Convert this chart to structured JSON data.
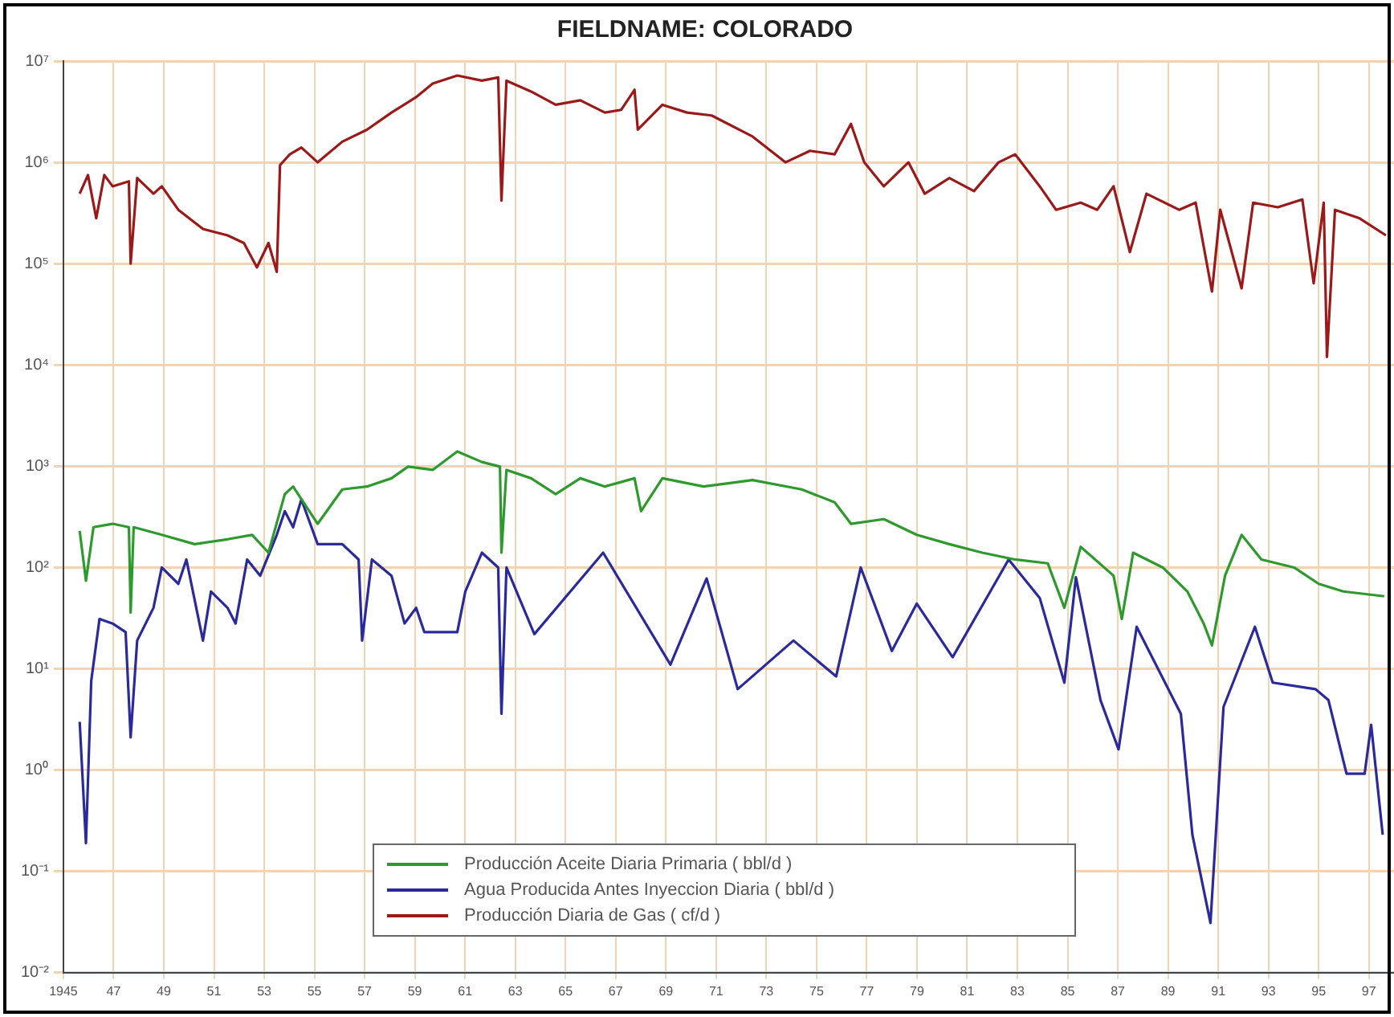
{
  "chart_data": {
    "type": "line",
    "title": "FIELDNAME: COLORADO",
    "log": "y",
    "grid": true,
    "legend": "bottom",
    "marker": "none",
    "line_style": "solid",
    "xlim": [
      1945,
      1998
    ],
    "xticks": [
      {
        "value": 1945,
        "label": "1945"
      },
      {
        "value": 1947,
        "label": "47"
      },
      {
        "value": 1949,
        "label": "49"
      },
      {
        "value": 1951,
        "label": "51"
      },
      {
        "value": 1953,
        "label": "53"
      },
      {
        "value": 1955,
        "label": "55"
      },
      {
        "value": 1957,
        "label": "57"
      },
      {
        "value": 1959,
        "label": "59"
      },
      {
        "value": 1961,
        "label": "61"
      },
      {
        "value": 1963,
        "label": "63"
      },
      {
        "value": 1965,
        "label": "65"
      },
      {
        "value": 1967,
        "label": "67"
      },
      {
        "value": 1969,
        "label": "69"
      },
      {
        "value": 1971,
        "label": "71"
      },
      {
        "value": 1973,
        "label": "73"
      },
      {
        "value": 1975,
        "label": "75"
      },
      {
        "value": 1977,
        "label": "77"
      },
      {
        "value": 1979,
        "label": "79"
      },
      {
        "value": 1981,
        "label": "81"
      },
      {
        "value": 1983,
        "label": "83"
      },
      {
        "value": 1985,
        "label": "85"
      },
      {
        "value": 1987,
        "label": "87"
      },
      {
        "value": 1989,
        "label": "89"
      },
      {
        "value": 1991,
        "label": "91"
      },
      {
        "value": 1993,
        "label": "93"
      },
      {
        "value": 1995,
        "label": "95"
      },
      {
        "value": 1997,
        "label": "97"
      }
    ],
    "ylim": [
      0.01,
      10000000
    ],
    "yticks": [
      {
        "value": 0.01,
        "label": "10⁻²"
      },
      {
        "value": 0.1,
        "label": "10⁻¹"
      },
      {
        "value": 1,
        "label": "10⁰"
      },
      {
        "value": 10,
        "label": "10¹"
      },
      {
        "value": 100,
        "label": "10²"
      },
      {
        "value": 1000,
        "label": "10³"
      },
      {
        "value": 10000,
        "label": "10⁴"
      },
      {
        "value": 100000,
        "label": "10⁵"
      },
      {
        "value": 1000000,
        "label": "10⁶"
      },
      {
        "value": 10000000,
        "label": "10⁷"
      }
    ],
    "series": [
      {
        "name": "Producción Aceite Diaria Primaria ( bbl/d )",
        "color": "#2e9a2e",
        "x": [
          1945.65,
          1945.9,
          1946.2,
          1946.96,
          1947.61,
          1947.68,
          1947.8,
          1948.92,
          1950.23,
          1951.54,
          1952.52,
          1953.17,
          1953.82,
          1954.15,
          1955.13,
          1956.11,
          1957.09,
          1958.07,
          1958.73,
          1959.71,
          1960.69,
          1961.67,
          1962.39,
          1962.45,
          1962.65,
          1963.63,
          1964.61,
          1965.59,
          1966.57,
          1967.75,
          1968.01,
          1968.86,
          1970.5,
          1972.45,
          1974.41,
          1975.72,
          1976.37,
          1977.68,
          1978.99,
          1980.29,
          1981.6,
          1982.9,
          1984.21,
          1984.87,
          1985.52,
          1986.83,
          1987.16,
          1987.61,
          1988.79,
          1989.77,
          1990.42,
          1990.75,
          1991.27,
          1991.93,
          1992.72,
          1994.02,
          1995.0,
          1995.98,
          1997.61
        ],
        "values": [
          230,
          74,
          250,
          270,
          250,
          36,
          250,
          210,
          170,
          190,
          210,
          140,
          530,
          630,
          270,
          590,
          630,
          760,
          990,
          920,
          1400,
          1100,
          990,
          140,
          920,
          760,
          530,
          760,
          630,
          760,
          360,
          760,
          630,
          730,
          590,
          440,
          270,
          300,
          210,
          170,
          140,
          120,
          110,
          40,
          160,
          83,
          31,
          140,
          100,
          58,
          28,
          17,
          83,
          210,
          120,
          100,
          69,
          58,
          52
        ]
      },
      {
        "name": "Agua Producida Antes Inyeccion Diaria ( bbl/d )",
        "color": "#2a2a9a",
        "x": [
          1945.65,
          1945.9,
          1946.11,
          1946.44,
          1946.96,
          1947.48,
          1947.68,
          1947.94,
          1948.59,
          1948.92,
          1949.58,
          1949.9,
          1950.56,
          1950.88,
          1951.54,
          1951.86,
          1952.32,
          1952.84,
          1953.5,
          1953.82,
          1954.15,
          1954.48,
          1955.13,
          1956.11,
          1956.76,
          1956.9,
          1957.29,
          1958.07,
          1958.59,
          1959.05,
          1959.38,
          1960.69,
          1961.01,
          1961.67,
          1962.32,
          1962.45,
          1962.65,
          1963.76,
          1966.5,
          1969.18,
          1970.62,
          1971.86,
          1974.08,
          1975.78,
          1976.76,
          1978.0,
          1978.99,
          1980.42,
          1982.65,
          1983.89,
          1984.87,
          1985.33,
          1986.31,
          1987.03,
          1987.75,
          1989.51,
          1989.97,
          1990.69,
          1991.21,
          1992.46,
          1993.17,
          1994.87,
          1995.39,
          1996.11,
          1996.83,
          1997.09,
          1997.55
        ],
        "values": [
          3.0,
          0.19,
          7.6,
          31,
          28,
          23,
          2.1,
          19,
          40,
          100,
          69,
          120,
          19,
          58,
          40,
          28,
          120,
          83,
          210,
          360,
          250,
          470,
          170,
          170,
          120,
          19,
          120,
          83,
          28,
          40,
          23,
          23,
          58,
          140,
          100,
          3.6,
          100,
          22,
          140,
          11,
          78,
          6.3,
          19,
          8.4,
          100,
          15,
          44,
          13,
          120,
          50,
          7.3,
          80,
          4.9,
          1.6,
          26,
          3.6,
          0.23,
          0.031,
          4.2,
          26,
          7.3,
          6.3,
          4.9,
          0.92,
          0.92,
          2.8,
          0.23
        ]
      },
      {
        "name": "Producción Diaria de Gas ( cf/d )",
        "color": "#9a1a1a",
        "x": [
          1945.65,
          1945.98,
          1946.31,
          1946.63,
          1946.96,
          1947.61,
          1947.68,
          1947.94,
          1948.59,
          1948.92,
          1949.58,
          1950.56,
          1951.54,
          1952.19,
          1952.71,
          1953.17,
          1953.5,
          1953.63,
          1954.02,
          1954.48,
          1955.13,
          1956.11,
          1957.09,
          1958.07,
          1959.05,
          1959.71,
          1960.69,
          1961.67,
          1962.32,
          1962.45,
          1962.65,
          1963.63,
          1964.61,
          1965.59,
          1966.57,
          1967.22,
          1967.75,
          1967.88,
          1968.86,
          1969.84,
          1970.82,
          1972.45,
          1973.76,
          1974.74,
          1975.72,
          1976.37,
          1976.9,
          1977.68,
          1978.66,
          1979.31,
          1980.29,
          1981.27,
          1982.25,
          1982.91,
          1983.89,
          1984.54,
          1985.52,
          1986.18,
          1986.83,
          1987.48,
          1988.14,
          1989.44,
          1990.1,
          1990.75,
          1991.08,
          1991.93,
          1992.39,
          1993.37,
          1994.35,
          1994.8,
          1995.2,
          1995.33,
          1995.65,
          1996.63,
          1997.68
        ],
        "values": [
          490000,
          750000,
          280000,
          750000,
          580000,
          650000,
          100000,
          700000,
          490000,
          580000,
          340000,
          220000,
          190000,
          160000,
          92000,
          160000,
          83000,
          940000,
          1200000,
          1400000,
          1000000,
          1600000,
          2100000,
          3100000,
          4400000,
          6000000,
          7200000,
          6400000,
          6900000,
          420000,
          6400000,
          5000000,
          3700000,
          4100000,
          3100000,
          3300000,
          5200000,
          2100000,
          3700000,
          3100000,
          2900000,
          1800000,
          1000000,
          1300000,
          1200000,
          2400000,
          1000000,
          580000,
          1000000,
          490000,
          700000,
          520000,
          1000000,
          1200000,
          580000,
          340000,
          400000,
          340000,
          580000,
          130000,
          490000,
          340000,
          400000,
          53000,
          340000,
          57000,
          400000,
          360000,
          430000,
          64000,
          400000,
          12000,
          340000,
          280000,
          190000
        ]
      }
    ]
  }
}
